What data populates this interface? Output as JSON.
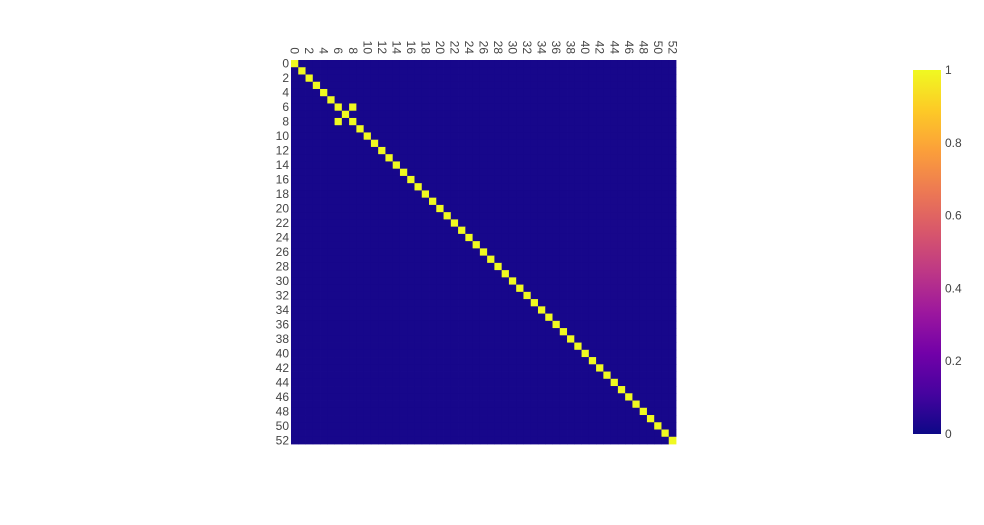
{
  "chart_data": {
    "type": "heatmap",
    "title": "",
    "xlabel": "",
    "ylabel": "",
    "n": 53,
    "x_categories": [
      0,
      1,
      2,
      3,
      4,
      5,
      6,
      7,
      8,
      9,
      10,
      11,
      12,
      13,
      14,
      15,
      16,
      17,
      18,
      19,
      20,
      21,
      22,
      23,
      24,
      25,
      26,
      27,
      28,
      29,
      30,
      31,
      32,
      33,
      34,
      35,
      36,
      37,
      38,
      39,
      40,
      41,
      42,
      43,
      44,
      45,
      46,
      47,
      48,
      49,
      50,
      51,
      52
    ],
    "y_categories": [
      0,
      1,
      2,
      3,
      4,
      5,
      6,
      7,
      8,
      9,
      10,
      11,
      12,
      13,
      14,
      15,
      16,
      17,
      18,
      19,
      20,
      21,
      22,
      23,
      24,
      25,
      26,
      27,
      28,
      29,
      30,
      31,
      32,
      33,
      34,
      35,
      36,
      37,
      38,
      39,
      40,
      41,
      42,
      43,
      44,
      45,
      46,
      47,
      48,
      49,
      50,
      51,
      52
    ],
    "x_tick_labels": [
      "0",
      "2",
      "4",
      "6",
      "8",
      "10",
      "12",
      "14",
      "16",
      "18",
      "20",
      "22",
      "24",
      "26",
      "28",
      "30",
      "32",
      "34",
      "36",
      "38",
      "40",
      "42",
      "44",
      "46",
      "48",
      "50",
      "52"
    ],
    "y_tick_labels": [
      "0",
      "2",
      "4",
      "6",
      "8",
      "10",
      "12",
      "14",
      "16",
      "18",
      "20",
      "22",
      "24",
      "26",
      "28",
      "30",
      "32",
      "34",
      "36",
      "38",
      "40",
      "42",
      "44",
      "46",
      "48",
      "50",
      "52"
    ],
    "x_axis_side": "top",
    "y_axis_reversed": true,
    "value_range": [
      0,
      1
    ],
    "background_value": 0.02,
    "high_cells": [
      [
        0,
        0
      ],
      [
        1,
        1
      ],
      [
        2,
        2
      ],
      [
        3,
        3
      ],
      [
        4,
        4
      ],
      [
        5,
        5
      ],
      [
        6,
        6
      ],
      [
        7,
        7
      ],
      [
        8,
        8
      ],
      [
        9,
        9
      ],
      [
        10,
        10
      ],
      [
        11,
        11
      ],
      [
        12,
        12
      ],
      [
        13,
        13
      ],
      [
        14,
        14
      ],
      [
        15,
        15
      ],
      [
        16,
        16
      ],
      [
        17,
        17
      ],
      [
        18,
        18
      ],
      [
        19,
        19
      ],
      [
        20,
        20
      ],
      [
        21,
        21
      ],
      [
        22,
        22
      ],
      [
        23,
        23
      ],
      [
        24,
        24
      ],
      [
        25,
        25
      ],
      [
        26,
        26
      ],
      [
        27,
        27
      ],
      [
        28,
        28
      ],
      [
        29,
        29
      ],
      [
        30,
        30
      ],
      [
        31,
        31
      ],
      [
        32,
        32
      ],
      [
        33,
        33
      ],
      [
        34,
        34
      ],
      [
        35,
        35
      ],
      [
        36,
        36
      ],
      [
        37,
        37
      ],
      [
        38,
        38
      ],
      [
        39,
        39
      ],
      [
        40,
        40
      ],
      [
        41,
        41
      ],
      [
        42,
        42
      ],
      [
        43,
        43
      ],
      [
        44,
        44
      ],
      [
        45,
        45
      ],
      [
        46,
        46
      ],
      [
        47,
        47
      ],
      [
        48,
        48
      ],
      [
        49,
        49
      ],
      [
        50,
        50
      ],
      [
        51,
        51
      ],
      [
        52,
        52
      ],
      [
        6,
        8
      ],
      [
        8,
        6
      ]
    ],
    "high_value": 1,
    "colorscale": "plasma",
    "colorbar": {
      "ticks": [
        0,
        0.2,
        0.4,
        0.6,
        0.8,
        1
      ],
      "tick_labels": [
        "0",
        "0.2",
        "0.4",
        "0.6",
        "0.8",
        "1"
      ]
    },
    "grid": false,
    "legend": "none"
  },
  "colors": {
    "low": "#0d0887",
    "high": "#f0f921",
    "tick_text": "#444444"
  }
}
